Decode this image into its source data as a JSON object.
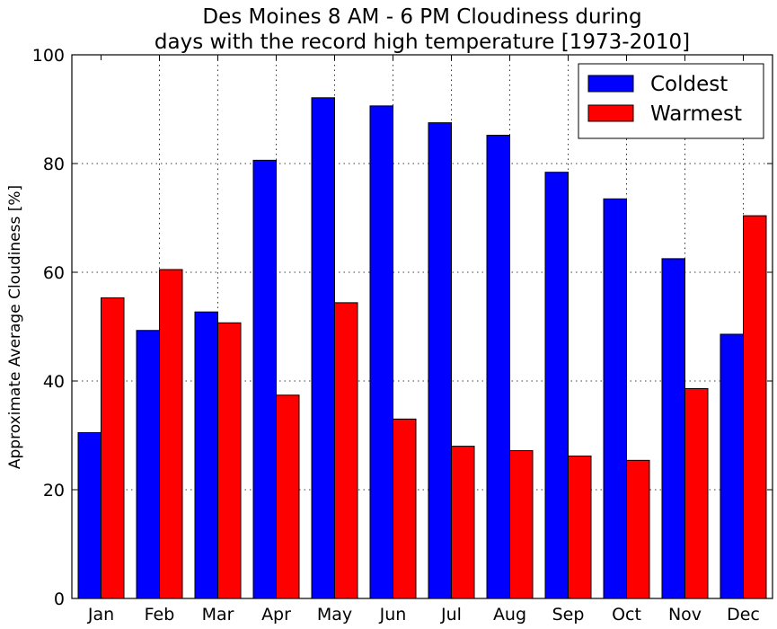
{
  "chart_data": {
    "type": "bar",
    "title": [
      "Des Moines 8 AM - 6 PM Cloudiness during",
      "days with the record high temperature [1973-2010]"
    ],
    "xlabel": "",
    "ylabel": "Approximate Average Cloudiness [%]",
    "ylim": [
      0,
      100
    ],
    "yticks": [
      "0",
      "20",
      "40",
      "60",
      "80",
      "100"
    ],
    "grid": true,
    "legend_position": "top-right",
    "categories": [
      "Jan",
      "Feb",
      "Mar",
      "Apr",
      "May",
      "Jun",
      "Jul",
      "Aug",
      "Sep",
      "Oct",
      "Nov",
      "Dec"
    ],
    "series": [
      {
        "name": "Coldest",
        "color": "#0000ff",
        "values": [
          30.5,
          49.3,
          52.7,
          80.6,
          92.1,
          90.6,
          87.5,
          85.2,
          78.4,
          73.5,
          62.5,
          48.6
        ]
      },
      {
        "name": "Warmest",
        "color": "#ff0000",
        "values": [
          55.3,
          60.5,
          50.7,
          37.4,
          54.4,
          33.0,
          28.0,
          27.2,
          26.2,
          25.4,
          38.6,
          70.4
        ]
      }
    ]
  }
}
